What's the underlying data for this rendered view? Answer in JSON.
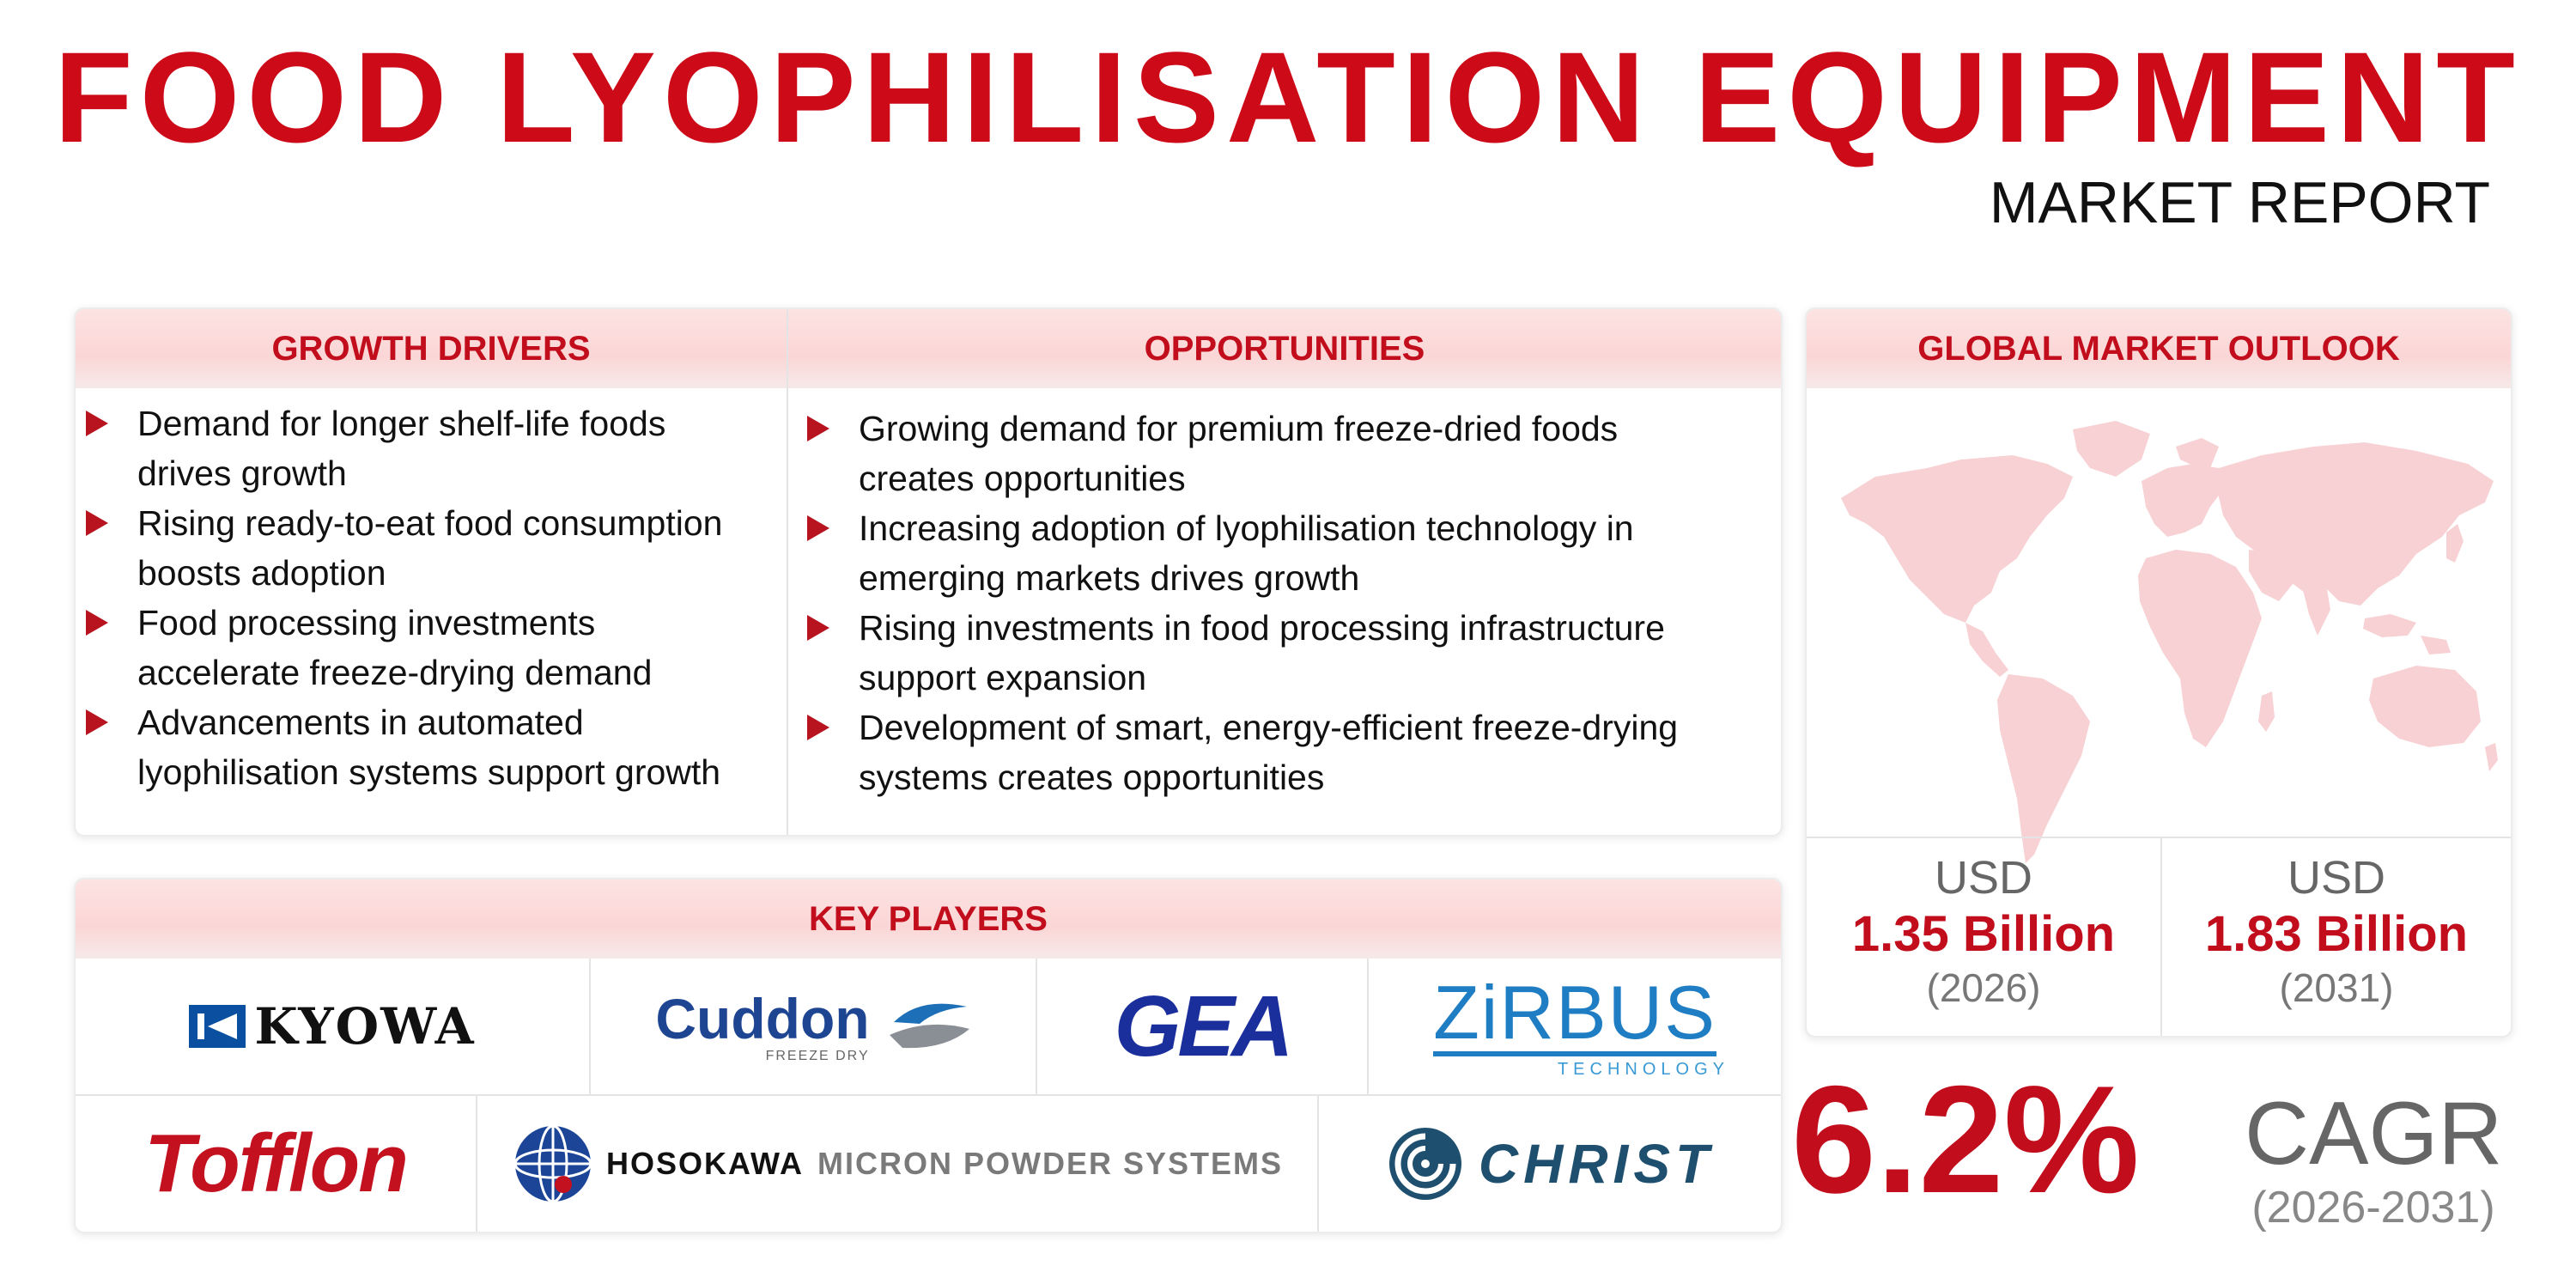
{
  "header": {
    "title": "FOOD LYOPHILISATION EQUIPMENT",
    "subtitle": "MARKET REPORT"
  },
  "growth_drivers": {
    "heading": "GROWTH DRIVERS",
    "items": [
      {
        "line1": "Demand for longer shelf-life foods",
        "line2": "drives growth"
      },
      {
        "line1": "Rising ready-to-eat food consumption",
        "line2": "boosts adoption"
      },
      {
        "line1": "Food processing investments",
        "line2": "accelerate freeze-drying demand"
      },
      {
        "line1": "Advancements in automated",
        "line2": "lyophilisation systems support growth"
      }
    ]
  },
  "opportunities": {
    "heading": "OPPORTUNITIES",
    "items": [
      {
        "line1": "Growing demand for premium freeze-dried foods",
        "line2": "creates opportunities"
      },
      {
        "line1": "Increasing adoption of lyophilisation technology in",
        "line2": "emerging markets drives growth"
      },
      {
        "line1": "Rising investments in food processing infrastructure",
        "line2": "support expansion"
      },
      {
        "line1": "Development of smart, energy-efficient freeze-drying",
        "line2": "systems creates opportunities"
      }
    ]
  },
  "outlook": {
    "heading": "GLOBAL MARKET OUTLOOK",
    "map_icon": "world-map-icon",
    "start": {
      "currency": "USD",
      "value": "1.35 Billion",
      "year": "(2026)"
    },
    "end": {
      "currency": "USD",
      "value": "1.83 Billion",
      "year": "(2031)"
    },
    "cagr_value": "6.2%",
    "cagr_label": "CAGR",
    "cagr_period": "(2026-2031)"
  },
  "key_players": {
    "heading": "KEY PLAYERS",
    "logos": {
      "kyowa": "KYOWA",
      "cuddon": "Cuddon",
      "cuddon_sub": "FREEZE DRY",
      "gea": "GEA",
      "zirbus": "ZiRBUS",
      "zirbus_sub": "TECHNOLOGY",
      "tofflon": "Tofflon",
      "hosokawa": "HOSOKAWA",
      "hosokawa_rest": "MICRON POWDER SYSTEMS",
      "christ": "CHRIST"
    }
  },
  "colors": {
    "accent": "#cc0a18",
    "header_band": "#fbd6d6",
    "map": "#f6c9cc"
  }
}
